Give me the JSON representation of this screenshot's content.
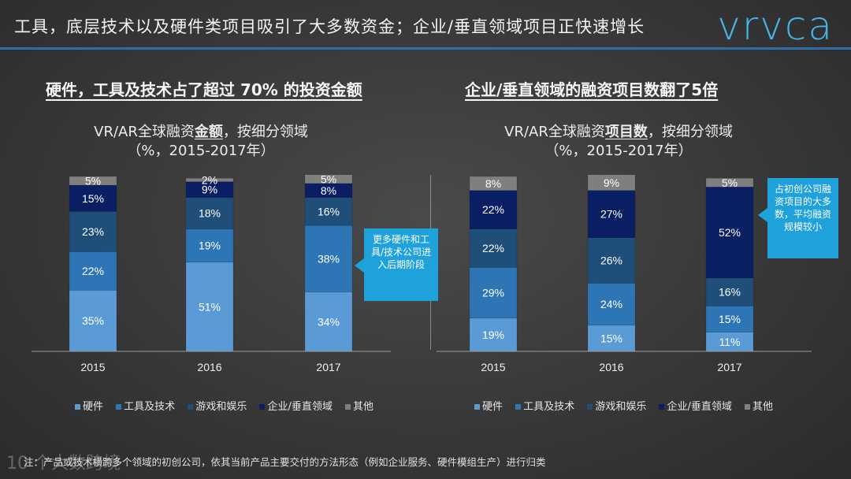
{
  "header": {
    "title": "工具，底层技术以及硬件类项目吸引了大多数资金；企业/垂直领域项目正快速增长",
    "logo": "vrvca"
  },
  "panels": {
    "left_heading": "硬件，工具及技术占了超过 70% 的投资金额",
    "right_heading": "企业/垂直领域的融资项目数翻了5倍",
    "left_chart_title": {
      "pre": "VR/AR全球融资",
      "emph": "金额",
      "post": "，按细分领域",
      "line2": "（%，2015-2017年）"
    },
    "right_chart_title": {
      "pre": "VR/AR全球融资",
      "emph": "项目数",
      "post": "，按细分领域",
      "line2": "（%，2015-2017年）"
    }
  },
  "callouts": {
    "left": "更多硬件和工具/技术公司进入后期阶段",
    "right": "占初创公司融资项目的大多数，平均融资规模较小"
  },
  "legend": [
    "硬件",
    "工具及技术",
    "游戏和娱乐",
    "企业/垂直领域",
    "其他"
  ],
  "footnote": "注：产品或技术横跨多个领域的初创公司，依其当前产品主要交付的方法形态（例如企业服务、硬件模组生产）进行归类",
  "watermark": "10 个大数跨境",
  "colors": {
    "hardware": "#5b9bd5",
    "tools": "#2e75b6",
    "games": "#1f4e79",
    "enterprise": "#0a1f63",
    "other": "#7f7f7f"
  },
  "chart_data": [
    {
      "type": "bar",
      "stacked": true,
      "title": "VR/AR全球融资金额，按细分领域（%，2015-2017年）",
      "categories": [
        "2015",
        "2016",
        "2017"
      ],
      "ylim": [
        0,
        100
      ],
      "series": [
        {
          "name": "硬件",
          "values": [
            35,
            51,
            34
          ]
        },
        {
          "name": "工具及技术",
          "values": [
            22,
            19,
            38
          ]
        },
        {
          "name": "游戏和娱乐",
          "values": [
            23,
            18,
            16
          ]
        },
        {
          "name": "企业/垂直领域",
          "values": [
            15,
            9,
            8
          ]
        },
        {
          "name": "其他",
          "values": [
            5,
            2,
            5
          ]
        }
      ]
    },
    {
      "type": "bar",
      "stacked": true,
      "title": "VR/AR全球融资项目数，按细分领域（%，2015-2017年）",
      "categories": [
        "2015",
        "2016",
        "2017"
      ],
      "ylim": [
        0,
        100
      ],
      "series": [
        {
          "name": "硬件",
          "values": [
            19,
            15,
            11
          ]
        },
        {
          "name": "工具及技术",
          "values": [
            29,
            24,
            15
          ]
        },
        {
          "name": "游戏和娱乐",
          "values": [
            22,
            26,
            16
          ]
        },
        {
          "name": "企业/垂直领域",
          "values": [
            22,
            27,
            52
          ]
        },
        {
          "name": "其他",
          "values": [
            8,
            9,
            5
          ]
        }
      ]
    }
  ]
}
